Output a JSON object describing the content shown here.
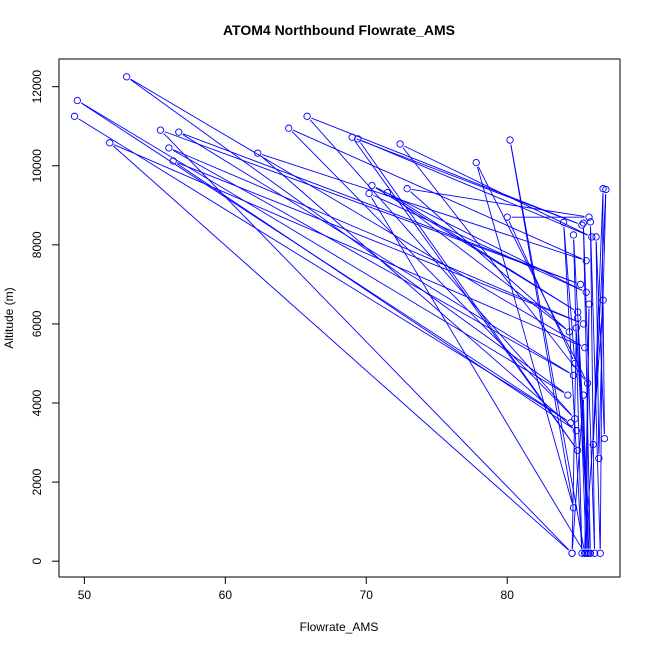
{
  "chart_data": {
    "type": "line",
    "title": "ATOM4 Northbound Flowrate_AMS",
    "xlabel": "Flowrate_AMS",
    "ylabel": "Altitude (m)",
    "xlim": [
      48.2,
      88.0
    ],
    "ylim": [
      -400,
      12700
    ],
    "x_ticks": [
      50,
      60,
      70,
      80
    ],
    "y_ticks": [
      0,
      2000,
      4000,
      6000,
      8000,
      10000,
      12000
    ],
    "grid": false,
    "legend": "none",
    "series_color": "#0000ff",
    "marker": "open-circle",
    "series": [
      {
        "points": [
          [
            49.3,
            11250
          ],
          [
            84.5,
            3500
          ],
          [
            49.5,
            11650
          ],
          [
            84.3,
            4200
          ],
          [
            53.0,
            12250
          ],
          [
            85.5,
            5400
          ],
          [
            51.8,
            10580
          ],
          [
            84.6,
            200
          ],
          [
            55.4,
            10900
          ],
          [
            85.2,
            7000
          ],
          [
            56.7,
            10850
          ],
          [
            84.7,
            4700
          ],
          [
            56.0,
            10450
          ],
          [
            85.4,
            6000
          ],
          [
            56.3,
            10120
          ],
          [
            84.9,
            3300
          ],
          [
            62.3,
            10320
          ],
          [
            85.6,
            7600
          ],
          [
            64.5,
            10950
          ],
          [
            84.8,
            3600
          ],
          [
            65.8,
            11250
          ],
          [
            85.3,
            8500
          ],
          [
            69.0,
            10720
          ],
          [
            85.0,
            2800
          ],
          [
            69.4,
            10680
          ],
          [
            86.0,
            8200
          ],
          [
            72.4,
            10550
          ],
          [
            85.7,
            4500
          ],
          [
            77.8,
            10080
          ],
          [
            84.7,
            1350
          ],
          [
            80.2,
            10650
          ],
          [
            85.5,
            200
          ],
          [
            70.2,
            9300
          ],
          [
            85.6,
            6800
          ],
          [
            70.4,
            9500
          ],
          [
            85.0,
            6300
          ],
          [
            71.5,
            9320
          ],
          [
            84.4,
            5800
          ],
          [
            72.9,
            9420
          ],
          [
            85.8,
            8700
          ],
          [
            80.0,
            8700
          ],
          [
            84.8,
            5000
          ],
          [
            84.0,
            8570
          ],
          [
            85.3,
            200
          ],
          [
            84.7,
            8250
          ],
          [
            85.9,
            200
          ],
          [
            85.4,
            8550
          ],
          [
            86.2,
            200
          ],
          [
            85.9,
            8580
          ],
          [
            86.6,
            200
          ],
          [
            86.8,
            9420
          ],
          [
            86.1,
            2950
          ],
          [
            87.0,
            9400
          ],
          [
            86.5,
            2600
          ],
          [
            86.3,
            8200
          ],
          [
            86.9,
            3100
          ],
          [
            86.8,
            6600
          ],
          [
            85.5,
            200
          ],
          [
            85.8,
            6500
          ],
          [
            85.6,
            200
          ],
          [
            85.0,
            6150
          ],
          [
            85.8,
            200
          ],
          [
            84.9,
            5900
          ],
          [
            84.6,
            200
          ],
          [
            85.4,
            4200
          ],
          [
            85.7,
            200
          ]
        ]
      }
    ]
  }
}
